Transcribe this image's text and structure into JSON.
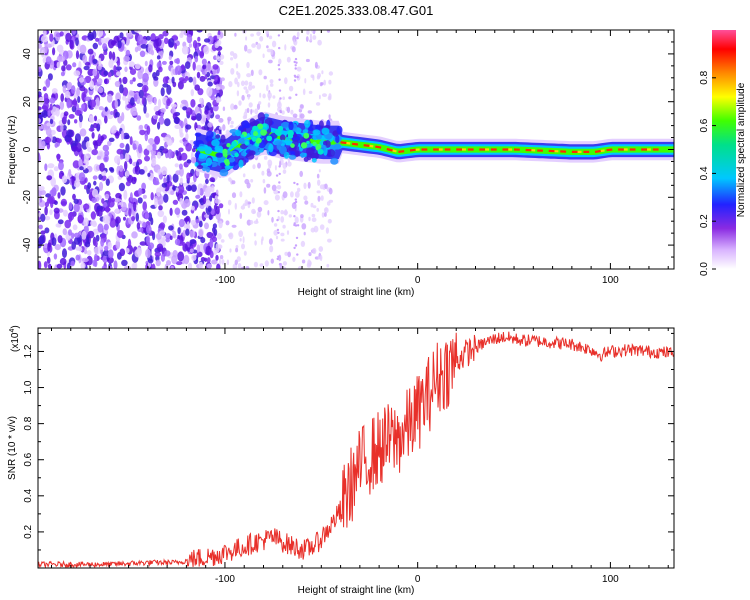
{
  "title": "C2E1.2025.333.08.47.G01",
  "chart_data": [
    {
      "type": "heatmap",
      "xlabel": "Height of straight line (km)",
      "ylabel": "Frequency (Hz)",
      "xlim": [
        -197,
        133
      ],
      "ylim": [
        -50,
        50
      ],
      "xticks": [
        -100,
        0,
        100
      ],
      "yticks": [
        -40,
        -20,
        0,
        20,
        40
      ],
      "colorbar": {
        "label": "Normalized spectral amplitude",
        "range": [
          0,
          1
        ],
        "ticks": [
          0.0,
          0.2,
          0.4,
          0.6,
          0.8
        ]
      },
      "ridge": [
        {
          "x": -115,
          "f": 0
        },
        {
          "x": -100,
          "f": -3
        },
        {
          "x": -90,
          "f": 3
        },
        {
          "x": -80,
          "f": 7
        },
        {
          "x": -70,
          "f": 5
        },
        {
          "x": -60,
          "f": 4
        },
        {
          "x": -50,
          "f": 3
        },
        {
          "x": -40,
          "f": 3
        },
        {
          "x": -30,
          "f": 2
        },
        {
          "x": -20,
          "f": 1
        },
        {
          "x": -10,
          "f": -1
        },
        {
          "x": 0,
          "f": 0
        },
        {
          "x": 50,
          "f": 0
        },
        {
          "x": 80,
          "f": -1
        },
        {
          "x": 92,
          "f": -1
        },
        {
          "x": 100,
          "f": 0
        },
        {
          "x": 133,
          "f": 0
        }
      ]
    },
    {
      "type": "line",
      "xlabel": "Height of straight line (km)",
      "ylabel": "SNR (10 * v/v)",
      "yscale_label": "(x10",
      "yscale_exp": "4",
      "xlim": [
        -197,
        133
      ],
      "ylim": [
        0,
        1.33
      ],
      "xticks": [
        -100,
        0,
        100
      ],
      "yticks": [
        0.2,
        0.4,
        0.6,
        0.8,
        1.0,
        1.2
      ],
      "color": "#e8302a",
      "series": {
        "name": "SNR",
        "x": [
          -197,
          -180,
          -160,
          -140,
          -125,
          -115,
          -105,
          -95,
          -85,
          -75,
          -65,
          -58,
          -52,
          -46,
          -40,
          -35,
          -30,
          -25,
          -20,
          -15,
          -10,
          -5,
          0,
          5,
          10,
          15,
          20,
          25,
          30,
          35,
          40,
          45,
          50,
          55,
          60,
          70,
          80,
          90,
          95,
          100,
          110,
          120,
          133
        ],
        "y": [
          0.02,
          0.02,
          0.02,
          0.03,
          0.03,
          0.05,
          0.07,
          0.1,
          0.14,
          0.17,
          0.12,
          0.1,
          0.14,
          0.22,
          0.32,
          0.45,
          0.56,
          0.62,
          0.66,
          0.7,
          0.72,
          0.78,
          0.86,
          0.95,
          1.05,
          1.1,
          1.15,
          1.19,
          1.22,
          1.25,
          1.27,
          1.28,
          1.27,
          1.26,
          1.26,
          1.25,
          1.24,
          1.21,
          1.18,
          1.2,
          1.21,
          1.2,
          1.19
        ]
      }
    }
  ]
}
